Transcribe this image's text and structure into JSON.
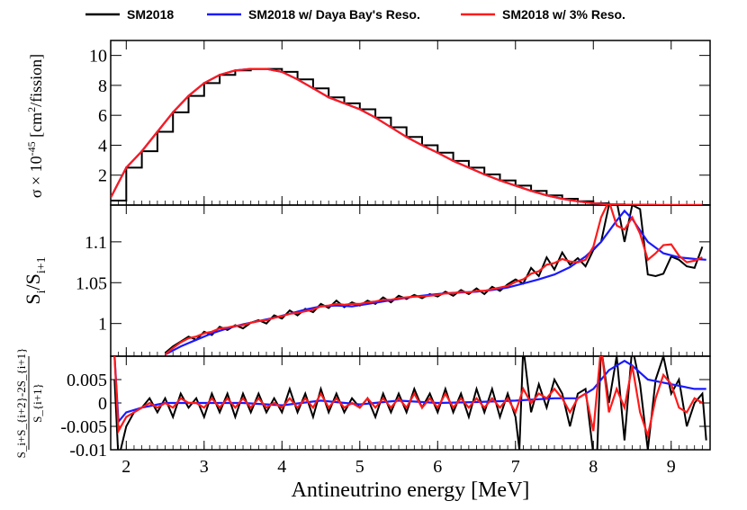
{
  "legend": [
    {
      "label": "SM2018",
      "color": "#000000"
    },
    {
      "label": "SM2018 w/ Daya Bay's Reso.",
      "color": "#1a1aff"
    },
    {
      "label": "SM2018 w/ 3% Reso.",
      "color": "#ff1a1a"
    }
  ],
  "xlabel": "Antineutrino energy [MeV]",
  "ylabels": {
    "top": {
      "main": "σ × 10",
      "sup1": "-45",
      "mid": " [cm",
      "sup2": "2",
      "tail": "/fission]"
    },
    "middle": {
      "s": "S",
      "sub1": "i",
      "slash": "/S",
      "sub2": "i+1"
    },
    "bottom": {
      "num": "S_i+S_{i+2}-2S_{i+1}",
      "den": "S_{i+1}"
    }
  },
  "chart_data": [
    {
      "type": "line",
      "title": "",
      "xlabel": "Antineutrino energy [MeV]",
      "ylabel": "σ × 10^-45 [cm^2/fission]",
      "xlim": [
        1.8,
        9.5
      ],
      "ylim": [
        0,
        11
      ],
      "xticks": [
        2,
        3,
        4,
        5,
        6,
        7,
        8,
        9
      ],
      "yticks": [
        2,
        4,
        6,
        8,
        10
      ],
      "series": [
        {
          "name": "SM2018",
          "x": [
            1.8,
            2.0,
            2.2,
            2.4,
            2.6,
            2.8,
            3.0,
            3.2,
            3.4,
            3.6,
            3.8,
            4.0,
            4.2,
            4.4,
            4.6,
            4.8,
            5.0,
            5.2,
            5.4,
            5.6,
            5.8,
            6.0,
            6.2,
            6.4,
            6.6,
            6.8,
            7.0,
            7.2,
            7.4,
            7.6,
            7.8,
            8.0,
            8.2,
            8.4,
            8.6,
            8.8,
            9.0,
            9.2,
            9.4
          ],
          "y": [
            0.3,
            2.5,
            3.6,
            4.9,
            6.2,
            7.3,
            8.15,
            8.7,
            9.0,
            9.1,
            9.1,
            8.9,
            8.4,
            7.8,
            7.2,
            6.8,
            6.4,
            5.85,
            5.2,
            4.55,
            4.0,
            3.5,
            2.95,
            2.5,
            2.05,
            1.65,
            1.3,
            0.95,
            0.65,
            0.42,
            0.25,
            0.12,
            0.05,
            0.02,
            0.01,
            0.0,
            0.0,
            0.0,
            0.0
          ]
        },
        {
          "name": "SM2018 w/ Daya Bay's Reso.",
          "x": [
            1.8,
            2.0,
            2.2,
            2.4,
            2.6,
            2.8,
            3.0,
            3.2,
            3.4,
            3.6,
            3.8,
            4.0,
            4.2,
            4.4,
            4.6,
            4.8,
            5.0,
            5.2,
            5.4,
            5.6,
            5.8,
            6.0,
            6.2,
            6.4,
            6.6,
            6.8,
            7.0,
            7.2,
            7.4,
            7.6,
            7.8,
            8.0,
            8.2,
            8.4,
            8.6,
            8.8,
            9.0,
            9.2,
            9.4
          ],
          "y": [
            0.5,
            2.5,
            3.6,
            4.9,
            6.2,
            7.3,
            8.15,
            8.7,
            9.0,
            9.1,
            9.1,
            8.9,
            8.4,
            7.8,
            7.2,
            6.8,
            6.4,
            5.85,
            5.2,
            4.55,
            4.0,
            3.5,
            2.95,
            2.5,
            2.05,
            1.65,
            1.3,
            0.95,
            0.65,
            0.42,
            0.25,
            0.12,
            0.05,
            0.02,
            0.01,
            0.0,
            0.0,
            0.0,
            0.0
          ]
        },
        {
          "name": "SM2018 w/ 3% Reso.",
          "x": [
            1.8,
            2.0,
            2.2,
            2.4,
            2.6,
            2.8,
            3.0,
            3.2,
            3.4,
            3.6,
            3.8,
            4.0,
            4.2,
            4.4,
            4.6,
            4.8,
            5.0,
            5.2,
            5.4,
            5.6,
            5.8,
            6.0,
            6.2,
            6.4,
            6.6,
            6.8,
            7.0,
            7.2,
            7.4,
            7.6,
            7.8,
            8.0,
            8.2,
            8.4,
            8.6,
            8.8,
            9.0,
            9.2,
            9.4
          ],
          "y": [
            0.5,
            2.5,
            3.6,
            4.9,
            6.2,
            7.3,
            8.15,
            8.7,
            9.0,
            9.1,
            9.1,
            8.9,
            8.4,
            7.8,
            7.2,
            6.8,
            6.4,
            5.85,
            5.2,
            4.55,
            4.0,
            3.5,
            2.95,
            2.5,
            2.05,
            1.65,
            1.3,
            0.95,
            0.65,
            0.42,
            0.25,
            0.12,
            0.05,
            0.02,
            0.01,
            0.0,
            0.0,
            0.0,
            0.0
          ]
        }
      ]
    },
    {
      "type": "line",
      "title": "",
      "ylabel": "S_i/S_i+1",
      "xlim": [
        1.8,
        9.5
      ],
      "ylim": [
        0.96,
        1.145
      ],
      "ytick_labels": [
        "1",
        "1.05",
        "1.1"
      ],
      "yticks": [
        1.0,
        1.05,
        1.1
      ],
      "series": [
        {
          "name": "SM2018",
          "x": [
            2.5,
            2.6,
            2.7,
            2.8,
            2.9,
            3.0,
            3.1,
            3.2,
            3.3,
            3.4,
            3.5,
            3.6,
            3.7,
            3.8,
            3.9,
            4.0,
            4.1,
            4.2,
            4.3,
            4.4,
            4.5,
            4.6,
            4.7,
            4.8,
            4.9,
            5.0,
            5.1,
            5.2,
            5.3,
            5.4,
            5.5,
            5.6,
            5.7,
            5.8,
            5.9,
            6.0,
            6.1,
            6.2,
            6.3,
            6.4,
            6.5,
            6.6,
            6.7,
            6.8,
            6.9,
            7.0,
            7.1,
            7.2,
            7.3,
            7.4,
            7.5,
            7.6,
            7.7,
            7.8,
            7.9,
            8.0,
            8.1,
            8.2,
            8.3,
            8.4,
            8.5,
            8.6,
            8.7,
            8.8,
            8.9,
            9.0,
            9.1,
            9.2,
            9.3,
            9.4
          ],
          "y": [
            0.964,
            0.972,
            0.978,
            0.984,
            0.98,
            0.99,
            0.986,
            0.996,
            0.992,
            0.998,
            0.994,
            1.001,
            1.004,
            1.0,
            1.01,
            1.006,
            1.016,
            1.01,
            1.018,
            1.014,
            1.024,
            1.019,
            1.028,
            1.02,
            1.026,
            1.022,
            1.028,
            1.024,
            1.032,
            1.026,
            1.034,
            1.03,
            1.035,
            1.031,
            1.036,
            1.033,
            1.039,
            1.034,
            1.041,
            1.036,
            1.043,
            1.036,
            1.045,
            1.04,
            1.048,
            1.054,
            1.049,
            1.068,
            1.058,
            1.081,
            1.066,
            1.087,
            1.072,
            1.08,
            1.07,
            1.09,
            1.1,
            1.145,
            1.15,
            1.1,
            1.145,
            1.14,
            1.06,
            1.058,
            1.061,
            1.082,
            1.078,
            1.07,
            1.068,
            1.094
          ]
        },
        {
          "name": "SM2018 w/ Daya Bay's Reso.",
          "x": [
            2.5,
            2.7,
            2.9,
            3.1,
            3.3,
            3.5,
            3.7,
            3.9,
            4.1,
            4.3,
            4.5,
            4.7,
            4.9,
            5.1,
            5.3,
            5.5,
            5.7,
            5.9,
            6.1,
            6.3,
            6.5,
            6.7,
            6.9,
            7.1,
            7.3,
            7.5,
            7.7,
            7.9,
            8.1,
            8.3,
            8.4,
            8.5,
            8.7,
            8.9,
            9.1,
            9.3,
            9.45
          ],
          "y": [
            0.962,
            0.972,
            0.98,
            0.988,
            0.994,
            0.999,
            1.003,
            1.007,
            1.012,
            1.017,
            1.021,
            1.022,
            1.021,
            1.024,
            1.027,
            1.03,
            1.033,
            1.035,
            1.037,
            1.038,
            1.039,
            1.041,
            1.044,
            1.049,
            1.054,
            1.06,
            1.069,
            1.082,
            1.1,
            1.126,
            1.138,
            1.128,
            1.1,
            1.086,
            1.081,
            1.079,
            1.078
          ]
        },
        {
          "name": "SM2018 w/ 3% Reso.",
          "x": [
            2.5,
            2.6,
            2.7,
            2.8,
            2.9,
            3.0,
            3.1,
            3.2,
            3.3,
            3.4,
            3.5,
            3.6,
            3.7,
            3.8,
            3.9,
            4.0,
            4.1,
            4.2,
            4.3,
            4.4,
            4.5,
            4.6,
            4.7,
            4.8,
            4.9,
            5.0,
            5.1,
            5.2,
            5.3,
            5.4,
            5.5,
            5.6,
            5.7,
            5.8,
            5.9,
            6.0,
            6.1,
            6.2,
            6.3,
            6.4,
            6.5,
            6.6,
            6.7,
            6.8,
            6.9,
            7.0,
            7.1,
            7.2,
            7.3,
            7.4,
            7.5,
            7.6,
            7.7,
            7.8,
            7.9,
            8.0,
            8.1,
            8.2,
            8.3,
            8.4,
            8.5,
            8.6,
            8.7,
            8.8,
            8.9,
            9.0,
            9.1,
            9.2,
            9.3,
            9.4
          ],
          "y": [
            0.962,
            0.97,
            0.977,
            0.982,
            0.984,
            0.988,
            0.99,
            0.994,
            0.995,
            0.997,
            0.998,
            1.001,
            1.003,
            1.004,
            1.007,
            1.009,
            1.012,
            1.013,
            1.015,
            1.017,
            1.021,
            1.022,
            1.024,
            1.023,
            1.024,
            1.024,
            1.026,
            1.027,
            1.029,
            1.029,
            1.031,
            1.032,
            1.033,
            1.033,
            1.034,
            1.035,
            1.037,
            1.037,
            1.039,
            1.038,
            1.04,
            1.04,
            1.042,
            1.044,
            1.046,
            1.051,
            1.054,
            1.061,
            1.064,
            1.072,
            1.074,
            1.079,
            1.076,
            1.075,
            1.078,
            1.094,
            1.13,
            1.15,
            1.12,
            1.115,
            1.13,
            1.11,
            1.078,
            1.086,
            1.096,
            1.097,
            1.083,
            1.075,
            1.077,
            1.081
          ]
        }
      ]
    },
    {
      "type": "line",
      "title": "",
      "xlabel": "Antineutrino energy [MeV]",
      "ylabel": "(S_i+S_i+2-2S_i+1)/S_i+1",
      "xlim": [
        1.8,
        9.5
      ],
      "ylim": [
        -0.01,
        0.01
      ],
      "ytick_labels": [
        "-0.01",
        "-0.005",
        "0",
        "0.005"
      ],
      "yticks": [
        -0.01,
        -0.005,
        0,
        0.005
      ],
      "series": [
        {
          "name": "SM2018",
          "x": [
            1.85,
            1.9,
            2.0,
            2.1,
            2.2,
            2.3,
            2.4,
            2.5,
            2.6,
            2.7,
            2.8,
            2.9,
            3.0,
            3.1,
            3.2,
            3.3,
            3.4,
            3.5,
            3.6,
            3.7,
            3.8,
            3.9,
            4.0,
            4.1,
            4.2,
            4.3,
            4.4,
            4.5,
            4.6,
            4.7,
            4.8,
            4.9,
            5.0,
            5.1,
            5.2,
            5.3,
            5.4,
            5.5,
            5.6,
            5.7,
            5.8,
            5.9,
            6.0,
            6.1,
            6.2,
            6.3,
            6.4,
            6.5,
            6.6,
            6.7,
            6.8,
            6.9,
            7.0,
            7.05,
            7.1,
            7.2,
            7.3,
            7.4,
            7.5,
            7.6,
            7.7,
            7.8,
            7.9,
            8.0,
            8.05,
            8.1,
            8.2,
            8.3,
            8.4,
            8.5,
            8.6,
            8.7,
            8.8,
            8.9,
            9.0,
            9.1,
            9.2,
            9.3,
            9.4,
            9.45
          ],
          "y": [
            0.005,
            -0.012,
            -0.005,
            -0.002,
            -0.001,
            0.001,
            -0.002,
            0.001,
            -0.003,
            0.002,
            -0.001,
            0.001,
            -0.003,
            0.002,
            -0.002,
            0.002,
            -0.003,
            0.002,
            -0.002,
            0.002,
            -0.002,
            0.001,
            -0.002,
            0.003,
            -0.002,
            0.002,
            -0.003,
            0.003,
            -0.002,
            0.002,
            -0.002,
            0.001,
            -0.001,
            0.001,
            -0.003,
            0.002,
            -0.002,
            0.002,
            -0.002,
            0.003,
            -0.001,
            0.002,
            -0.002,
            0.003,
            -0.002,
            0.002,
            -0.003,
            0.003,
            -0.002,
            0.003,
            -0.003,
            0.002,
            -0.003,
            -0.01,
            0.012,
            -0.002,
            0.004,
            -0.001,
            0.005,
            0.002,
            -0.005,
            0.002,
            0.003,
            -0.011,
            -0.01,
            0.012,
            0.0,
            0.01,
            -0.008,
            0.012,
            0.004,
            -0.01,
            0.005,
            0.01,
            0.002,
            0.005,
            -0.005,
            0.0,
            0.002,
            -0.008
          ]
        },
        {
          "name": "SM2018 w/ Daya Bay's Reso.",
          "x": [
            1.85,
            1.9,
            2.0,
            2.2,
            2.5,
            3.0,
            3.5,
            4.0,
            4.5,
            5.0,
            5.5,
            6.0,
            6.5,
            7.0,
            7.5,
            7.8,
            8.0,
            8.2,
            8.4,
            8.5,
            8.7,
            9.0,
            9.3,
            9.45
          ],
          "y": [
            0.01,
            -0.004,
            -0.002,
            -0.001,
            0.0,
            0.0,
            0.0,
            -0.0005,
            0.0005,
            -0.0003,
            0.0005,
            0.0,
            0.0002,
            0.0005,
            0.001,
            0.001,
            0.003,
            0.007,
            0.009,
            0.008,
            0.005,
            0.004,
            0.003,
            0.003
          ]
        },
        {
          "name": "SM2018 w/ 3% Reso.",
          "x": [
            1.85,
            1.9,
            2.0,
            2.1,
            2.2,
            2.3,
            2.4,
            2.5,
            2.6,
            2.7,
            2.8,
            2.9,
            3.0,
            3.1,
            3.2,
            3.3,
            3.4,
            3.5,
            3.6,
            3.7,
            3.8,
            3.9,
            4.0,
            4.1,
            4.2,
            4.3,
            4.4,
            4.5,
            4.6,
            4.7,
            4.8,
            4.9,
            5.0,
            5.1,
            5.2,
            5.3,
            5.4,
            5.5,
            5.6,
            5.7,
            5.8,
            5.9,
            6.0,
            6.1,
            6.2,
            6.3,
            6.4,
            6.5,
            6.6,
            6.7,
            6.8,
            6.9,
            7.0,
            7.1,
            7.2,
            7.3,
            7.4,
            7.5,
            7.6,
            7.7,
            7.8,
            7.9,
            8.0,
            8.1,
            8.2,
            8.3,
            8.4,
            8.5,
            8.6,
            8.7,
            8.8,
            8.9,
            9.0,
            9.1,
            9.2,
            9.3,
            9.4
          ],
          "y": [
            0.01,
            -0.006,
            -0.003,
            -0.002,
            -0.001,
            0.0,
            -0.001,
            0.0,
            -0.001,
            0.001,
            0.0,
            0.0,
            -0.001,
            0.001,
            -0.001,
            0.001,
            -0.001,
            0.001,
            -0.001,
            0.001,
            -0.001,
            0.0,
            -0.001,
            0.001,
            -0.001,
            0.001,
            -0.001,
            0.002,
            -0.001,
            0.001,
            -0.001,
            0.0,
            -0.001,
            0.001,
            -0.001,
            0.001,
            -0.001,
            0.001,
            -0.001,
            0.002,
            -0.001,
            0.001,
            -0.001,
            0.002,
            -0.001,
            0.001,
            -0.001,
            0.001,
            -0.001,
            0.001,
            -0.001,
            0.001,
            -0.002,
            0.003,
            0.0,
            0.002,
            0.001,
            0.003,
            0.001,
            -0.002,
            0.001,
            0.002,
            -0.006,
            0.012,
            -0.002,
            0.003,
            -0.001,
            0.008,
            -0.002,
            -0.007,
            0.001,
            0.006,
            0.004,
            -0.001,
            -0.002,
            0.001,
            0.0
          ]
        }
      ]
    }
  ]
}
